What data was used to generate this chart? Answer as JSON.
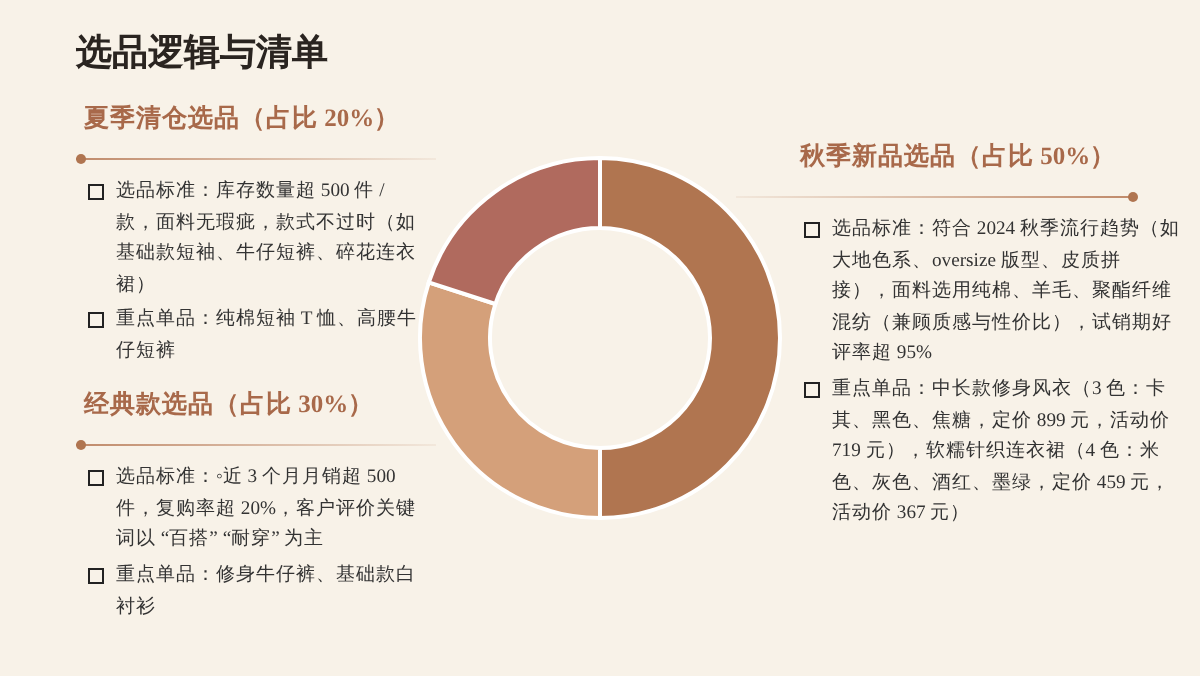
{
  "chart_data": {
    "type": "donut",
    "title": "选品逻辑与清单",
    "categories": [
      "秋季新品选品（占比 50%）",
      "经典款选品（占比 30%）",
      "夏季清仓选品（占比 20%）"
    ],
    "values": [
      50,
      30,
      20
    ],
    "colors": [
      "#b07550",
      "#d4a07a",
      "#b06a5e"
    ],
    "annotations": [
      "选品标准：库存数量超 500 件 / 款，面料无瑕疵，款式不过时（如基础款短袖、牛仔短裤、碎花连衣裙）",
      "重点单品：纯棉短袖 T 恤、高腰牛仔短裤",
      "选品标准：◦近 3 个月月销超 500 件，复购率超 20%，客户评价关键词以 “百搭” “耐穿” 为主",
      "重点单品：修身牛仔裤、基础款白衬衫",
      "选品标准：符合 2024 秋季流行趋势（如大地色系、oversize 版型、皮质拼接），面料选用纯棉、羊毛、聚酯纤维混纺（兼顾质感与性价比），试销期好评率超 95%",
      "重点单品：中长款修身风衣（3 色：卡其、黑色、焦糖，定价 899 元，活动价 719 元），软糯针织连衣裙（4 色：米色、灰色、酒红、墨绿，定价 459 元，活动价 367 元）"
    ]
  }
}
